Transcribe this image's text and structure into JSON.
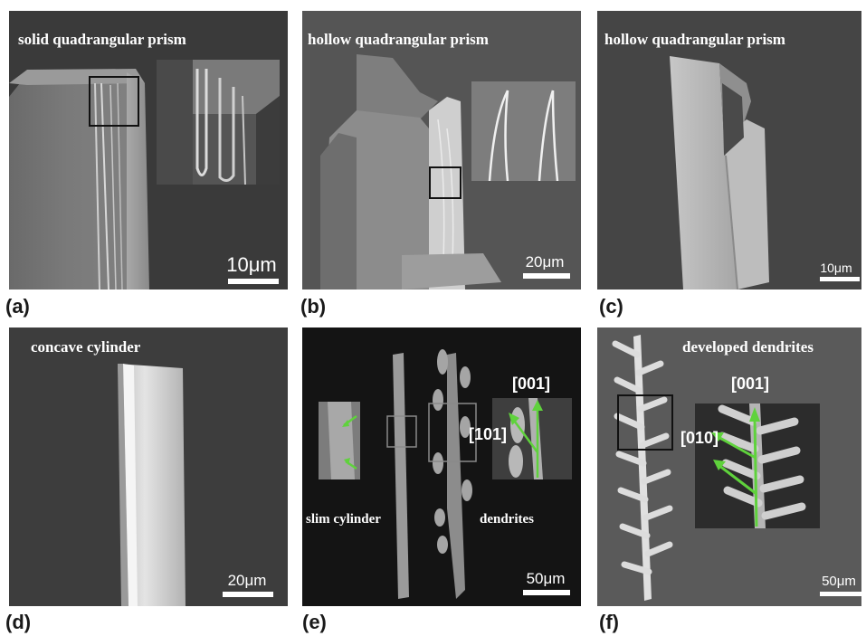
{
  "panels": {
    "a": {
      "title": "solid quadrangular prism",
      "scale": "10μm",
      "label": "(a)"
    },
    "b": {
      "title": "hollow quadrangular prism",
      "scale": "20μm",
      "label": "(b)"
    },
    "c": {
      "title": "hollow quadrangular prism",
      "scale": "10μm",
      "label": "(c)"
    },
    "d": {
      "title": "concave cylinder",
      "scale": "20μm",
      "label": "(d)"
    },
    "e": {
      "scale": "50μm",
      "label": "(e)",
      "left_caption": "slim cylinder",
      "right_caption": "dendrites",
      "dir_a": "[001]",
      "dir_b": "[101]"
    },
    "f": {
      "title": "developed dendrites",
      "scale": "50μm",
      "label": "(f)",
      "dir_a": "[001]",
      "dir_b": "[010]"
    }
  },
  "colors": {
    "arrow": "#5fd23c",
    "bg_dark": "#3a3a3a",
    "bg_mid": "#5c5c5c"
  }
}
